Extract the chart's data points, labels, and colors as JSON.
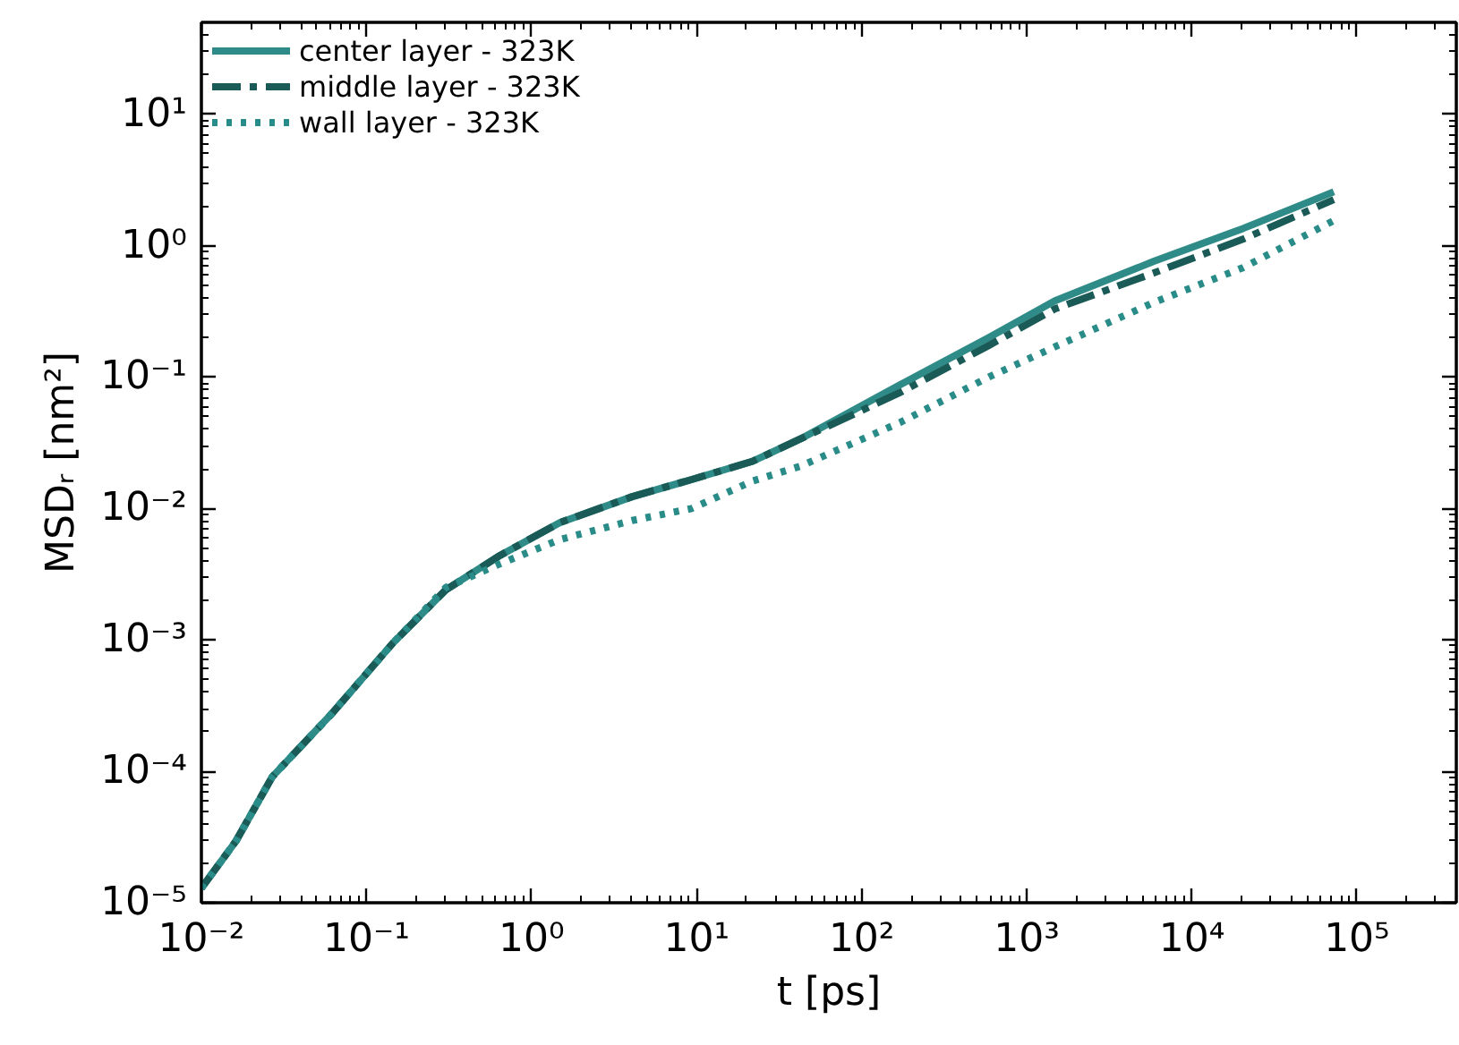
{
  "chart_data": {
    "type": "line",
    "xlabel": "t [ps]",
    "ylabel": "MSDᵣ [nm²]",
    "log": "xy",
    "legend": "top left",
    "grid": false,
    "xlim": [
      0.01,
      400000
    ],
    "ylim": [
      1e-05,
      50
    ],
    "xticks": [
      {
        "value": 0.01,
        "label": "10⁻²"
      },
      {
        "value": 0.1,
        "label": "10⁻¹"
      },
      {
        "value": 1,
        "label": "10⁰"
      },
      {
        "value": 10,
        "label": "10¹"
      },
      {
        "value": 100,
        "label": "10²"
      },
      {
        "value": 1000,
        "label": "10³"
      },
      {
        "value": 10000,
        "label": "10⁴"
      },
      {
        "value": 100000,
        "label": "10⁵"
      }
    ],
    "yticks": [
      {
        "value": 1e-05,
        "label": "10⁻⁵"
      },
      {
        "value": 0.0001,
        "label": "10⁻⁴"
      },
      {
        "value": 0.001,
        "label": "10⁻³"
      },
      {
        "value": 0.01,
        "label": "10⁻²"
      },
      {
        "value": 0.1,
        "label": "10⁻¹"
      },
      {
        "value": 1,
        "label": "10⁰"
      },
      {
        "value": 10,
        "label": "10¹"
      }
    ],
    "x": [
      0.01,
      0.0162,
      0.0269,
      0.0617,
      0.145,
      0.302,
      0.646,
      1.48,
      4.07,
      9.33,
      21.9,
      42.7,
      170,
      589,
      1480,
      5890,
      20400,
      72400
    ],
    "series": [
      {
        "name": "center layer - 323K",
        "color": "#2e8b87",
        "line_style": "solid",
        "values": [
          1.29e-05,
          2.95e-05,
          9.1e-05,
          0.000275,
          0.00095,
          0.0024,
          0.0044,
          0.0078,
          0.0123,
          0.0166,
          0.0229,
          0.0339,
          0.087,
          0.2,
          0.38,
          0.76,
          1.35,
          2.57
        ]
      },
      {
        "name": "middle layer - 323K",
        "color": "#1a5a57",
        "line_style": "dashdot",
        "values": [
          1.29e-05,
          2.95e-05,
          9.1e-05,
          0.000275,
          0.00095,
          0.0024,
          0.0044,
          0.0078,
          0.0123,
          0.0166,
          0.0229,
          0.0339,
          0.076,
          0.174,
          0.33,
          0.62,
          1.12,
          2.24
        ]
      },
      {
        "name": "wall layer - 323K",
        "color": "#2a8c88",
        "line_style": "dotted",
        "values": [
          1.29e-05,
          2.95e-05,
          9.1e-05,
          0.000275,
          0.00095,
          0.0025,
          0.0038,
          0.0058,
          0.0081,
          0.01,
          0.0162,
          0.021,
          0.045,
          0.1,
          0.17,
          0.37,
          0.68,
          1.55
        ]
      }
    ]
  }
}
